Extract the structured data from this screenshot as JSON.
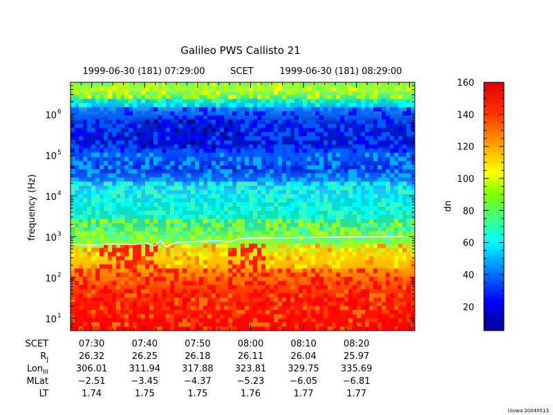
{
  "chart_data": {
    "type": "heatmap",
    "title": "Galileo PWS Callisto 21",
    "top_axis": {
      "left_label": "1999-06-30 (181) 07:29:00",
      "center_label": "SCET",
      "right_label": "1999-06-30 (181) 08:29:00"
    },
    "ylabel": "frequency (Hz)",
    "y_scale": "log",
    "ylim": [
      5,
      6000000
    ],
    "y_ticks": [
      {
        "base": "10",
        "exp": "1",
        "value": 10
      },
      {
        "base": "10",
        "exp": "2",
        "value": 100
      },
      {
        "base": "10",
        "exp": "3",
        "value": 1000
      },
      {
        "base": "10",
        "exp": "4",
        "value": 10000
      },
      {
        "base": "10",
        "exp": "5",
        "value": 100000
      },
      {
        "base": "10",
        "exp": "6",
        "value": 1000000
      }
    ],
    "x_scale": "time",
    "xlim": [
      "07:26",
      "08:31"
    ],
    "x_ticks": [
      "07:30",
      "07:40",
      "07:50",
      "08:00",
      "08:10",
      "08:20"
    ],
    "colorbar": {
      "label": "dn",
      "range": [
        5,
        160
      ],
      "ticks": [
        "20",
        "40",
        "60",
        "80",
        "100",
        "120",
        "140",
        "160"
      ],
      "tick_values": [
        20,
        40,
        60,
        80,
        100,
        120,
        140,
        160
      ],
      "colormap": "jet"
    },
    "white_line": [
      {
        "t": "07:26",
        "f": 650
      },
      {
        "t": "07:30",
        "f": 620
      },
      {
        "t": "07:34",
        "f": 660
      },
      {
        "t": "07:38",
        "f": 640
      },
      {
        "t": "07:40",
        "f": 700
      },
      {
        "t": "07:42",
        "f": 600
      },
      {
        "t": "07:43",
        "f": 820
      },
      {
        "t": "07:44",
        "f": 560
      },
      {
        "t": "07:46",
        "f": 720
      },
      {
        "t": "07:50",
        "f": 760
      },
      {
        "t": "07:54",
        "f": 800
      },
      {
        "t": "07:56",
        "f": 740
      },
      {
        "t": "07:58",
        "f": 900
      },
      {
        "t": "08:02",
        "f": 920
      },
      {
        "t": "08:10",
        "f": 950
      },
      {
        "t": "08:20",
        "f": 990
      },
      {
        "t": "08:29",
        "f": 1000
      }
    ],
    "ephemeris": {
      "labels": [
        "SCET",
        "R_J",
        "Lon_III",
        "MLat",
        "LT"
      ],
      "columns": [
        {
          "SCET": "07:30",
          "R_J": "26.32",
          "Lon_III": "306.01",
          "MLat": "−2.51",
          "LT": "1.74"
        },
        {
          "SCET": "07:40",
          "R_J": "26.25",
          "Lon_III": "311.94",
          "MLat": "−3.45",
          "LT": "1.75"
        },
        {
          "SCET": "07:50",
          "R_J": "26.18",
          "Lon_III": "317.88",
          "MLat": "−4.37",
          "LT": "1.75"
        },
        {
          "SCET": "08:00",
          "R_J": "26.11",
          "Lon_III": "323.81",
          "MLat": "−5.23",
          "LT": "1.76"
        },
        {
          "SCET": "08:10",
          "R_J": "26.04",
          "Lon_III": "329.75",
          "MLat": "−6.05",
          "LT": "1.77"
        },
        {
          "SCET": "08:20",
          "R_J": "25.97",
          "Lon_III": "335.69",
          "MLat": "−6.81",
          "LT": "1.77"
        }
      ]
    },
    "credit": "Uiowa 20040513"
  },
  "eph_label_text": {
    "SCET": "SCET",
    "R_J_base": "R",
    "R_J_sub": "J",
    "Lon_base": "Lon",
    "Lon_sub": "III",
    "MLat": "MLat",
    "LT": "LT"
  }
}
